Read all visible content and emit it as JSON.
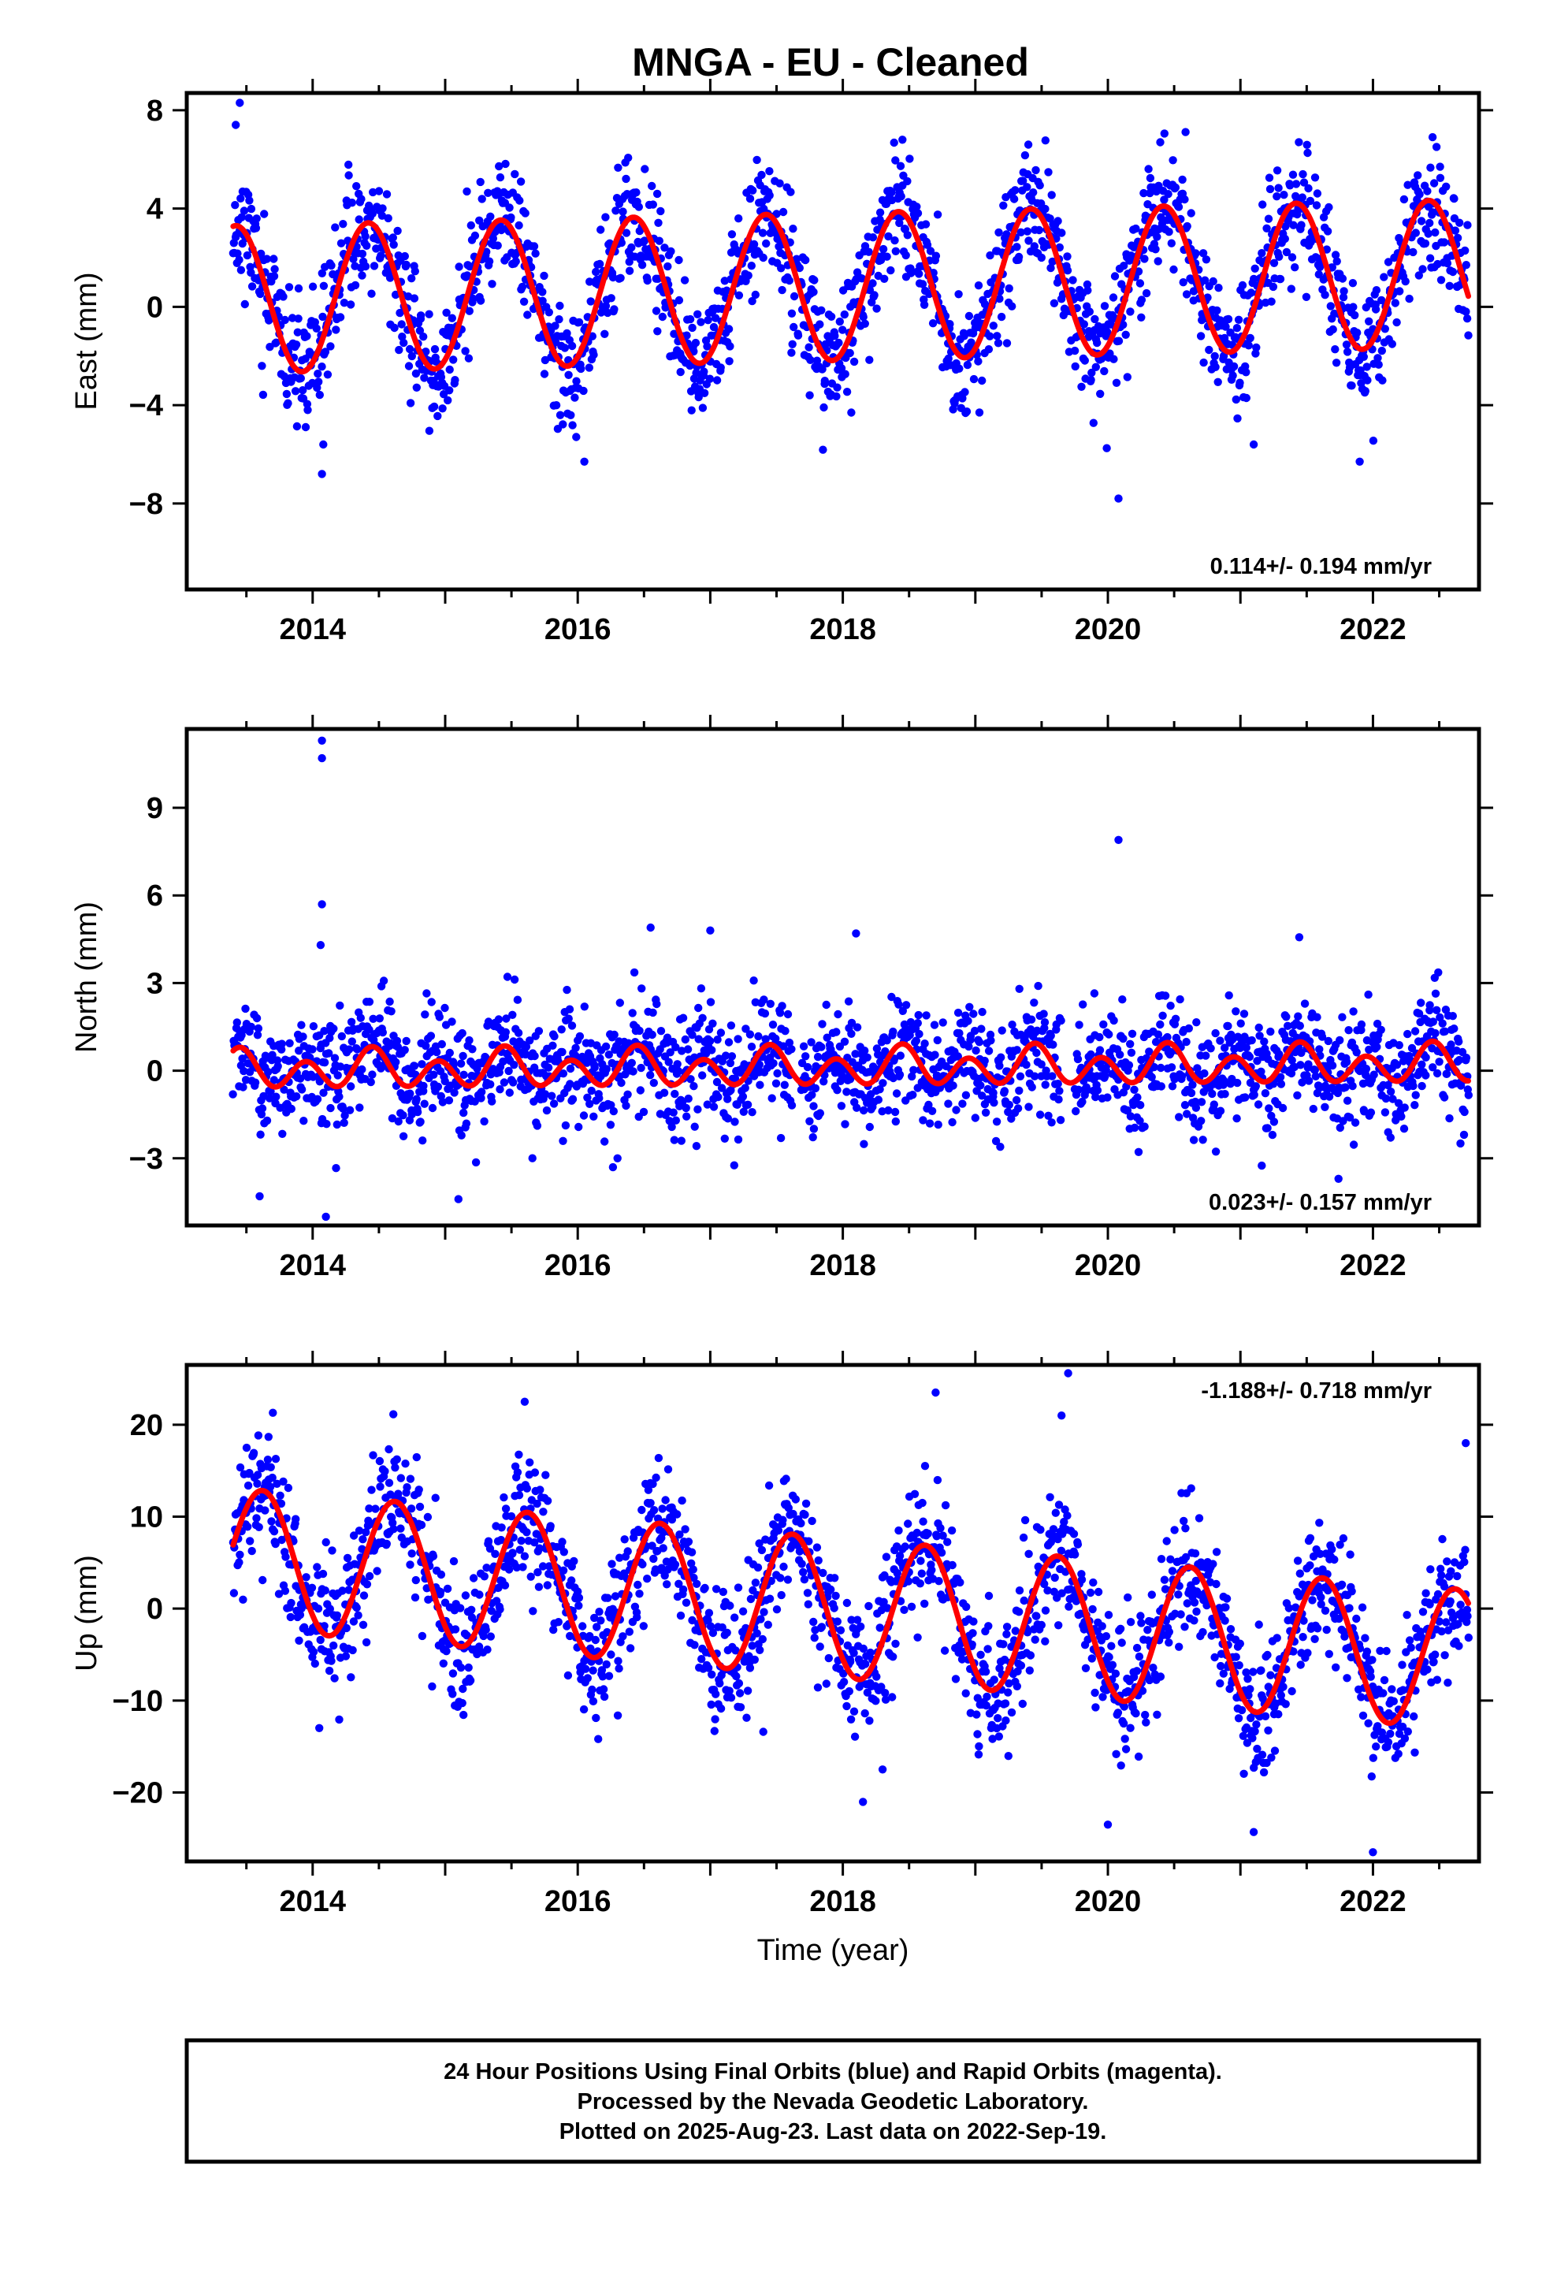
{
  "title": "MNGA  - EU - Cleaned",
  "colors": {
    "final_orbits": "#0000ff",
    "model_fit": "#ff0000",
    "frame": "#000000"
  },
  "chart_data": [
    {
      "type": "scatter",
      "id": "east",
      "ylabel": "East (mm)",
      "xlim": [
        2013.05,
        2022.8
      ],
      "ylim": [
        -11.5,
        8.7
      ],
      "yticks": [
        -8,
        -4,
        0,
        4,
        8
      ],
      "xticks": [
        2014,
        2016,
        2018,
        2020,
        2022
      ],
      "rate": "0.114+/- 0.194 mm/yr",
      "rate_position": "bottom-right",
      "series": [
        {
          "role": "model",
          "amplitude_annual": 3.0,
          "amplitude_semiannual": 0.0,
          "phase_peak": 0.42,
          "trend": 0.114,
          "offset": 0.3,
          "t_start": 2013.4,
          "t_end": 2022.72
        },
        {
          "role": "observations",
          "noise": 1.25,
          "n": 1900,
          "seed": 11,
          "outliers": [
            [
              2013.45,
              8.3
            ],
            [
              2013.42,
              7.4
            ],
            [
              2014.08,
              -5.6
            ],
            [
              2014.07,
              -6.8
            ],
            [
              2016.05,
              -6.3
            ],
            [
              2020.08,
              -7.8
            ],
            [
              2021.1,
              -5.6
            ],
            [
              2021.9,
              -6.3
            ],
            [
              2016.6,
              4.6
            ],
            [
              2018.45,
              6.8
            ],
            [
              2019.4,
              6.6
            ],
            [
              2022.45,
              6.9
            ]
          ]
        }
      ]
    },
    {
      "type": "scatter",
      "id": "north",
      "ylabel": "North (mm)",
      "xlim": [
        2013.05,
        2022.8
      ],
      "ylim": [
        -5.3,
        11.7
      ],
      "yticks": [
        -3,
        0,
        3,
        6,
        9
      ],
      "xticks": [
        2014,
        2016,
        2018,
        2020,
        2022
      ],
      "rate": "0.023+/- 0.157 mm/yr",
      "rate_position": "bottom-right",
      "series": [
        {
          "role": "model",
          "amplitude_annual": 0.25,
          "amplitude_semiannual": 0.55,
          "phase_peak": 0.45,
          "trend": 0.023,
          "offset": 0.0,
          "t_start": 2013.4,
          "t_end": 2022.72
        },
        {
          "role": "observations",
          "noise": 0.95,
          "n": 1900,
          "seed": 23,
          "outliers": [
            [
              2014.07,
              11.3
            ],
            [
              2014.07,
              10.7
            ],
            [
              2014.07,
              5.7
            ],
            [
              2014.06,
              4.3
            ],
            [
              2020.08,
              7.9
            ],
            [
              2016.55,
              4.9
            ],
            [
              2017.0,
              4.8
            ],
            [
              2018.1,
              4.7
            ],
            [
              2013.6,
              -4.3
            ],
            [
              2014.1,
              -5.0
            ],
            [
              2015.1,
              -4.4
            ],
            [
              2016.3,
              -3.0
            ]
          ]
        }
      ]
    },
    {
      "type": "scatter",
      "id": "up",
      "ylabel": "Up (mm)",
      "xlim": [
        2013.05,
        2022.8
      ],
      "ylim": [
        -27.5,
        26.5
      ],
      "yticks": [
        -20,
        -10,
        0,
        10,
        20
      ],
      "xticks": [
        2014,
        2016,
        2018,
        2020,
        2022
      ],
      "xlabel": "Time (year)",
      "rate": "-1.188+/- 0.718 mm/yr",
      "rate_position": "top-right",
      "series": [
        {
          "role": "model",
          "amplitude_annual": 7.6,
          "amplitude_semiannual": 0.0,
          "phase_peak": 0.62,
          "trend": -1.188,
          "offset": 5.5,
          "t_start": 2013.4,
          "t_end": 2022.72
        },
        {
          "role": "observations",
          "noise": 3.6,
          "n": 1900,
          "seed": 37,
          "outliers": [
            [
              2019.7,
              25.6
            ],
            [
              2018.7,
              23.5
            ],
            [
              2015.6,
              22.5
            ],
            [
              2022.0,
              -26.5
            ],
            [
              2021.1,
              -24.3
            ],
            [
              2020.0,
              -23.5
            ],
            [
              2014.05,
              -13.0
            ],
            [
              2017.4,
              -13.4
            ],
            [
              2022.7,
              18.0
            ],
            [
              2019.65,
              21.0
            ],
            [
              2013.7,
              21.3
            ],
            [
              2018.3,
              -17.5
            ]
          ]
        }
      ]
    }
  ],
  "footer": {
    "line1": "24 Hour Positions Using Final Orbits (blue) and Rapid Orbits (magenta).",
    "line2": "Processed by the Nevada Geodetic Laboratory.",
    "line3": "Plotted on 2025-Aug-23. Last data on 2022-Sep-19."
  }
}
